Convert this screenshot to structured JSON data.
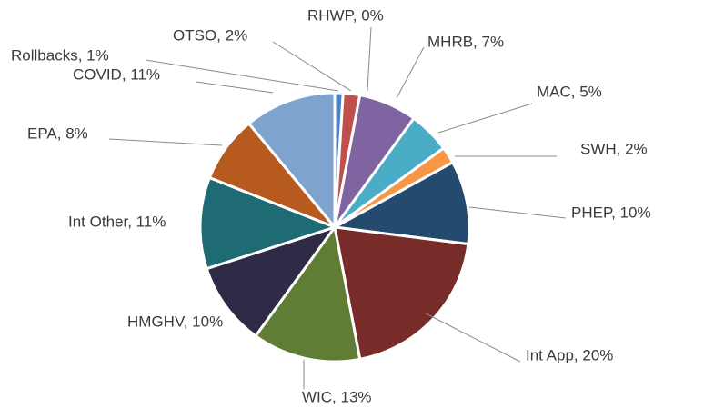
{
  "chart_data": {
    "type": "pie",
    "values": [
      1,
      2,
      0,
      7,
      5,
      2,
      10,
      20,
      13,
      10,
      11,
      8,
      11
    ],
    "value_labels": [
      "Rollbacks, 1%",
      "OTSO, 2%",
      "RHWP, 0%",
      "MHRB, 7%",
      "MAC, 5%",
      "SWH, 2%",
      "PHEP, 10%",
      "Int App, 20%",
      "WIC, 13%",
      "HMGHV, 10%",
      "Int Other, 11%",
      "EPA, 8%",
      "COVID, 11%"
    ],
    "colors": [
      "#4f81bd",
      "#c0504d",
      "#9bbb59",
      "#8064a2",
      "#4bacc6",
      "#f79646",
      "#244a6e",
      "#772c2a",
      "#5f7d34",
      "#2f2a45",
      "#1f6b73",
      "#b65a1f",
      "#7ea3cf"
    ]
  }
}
